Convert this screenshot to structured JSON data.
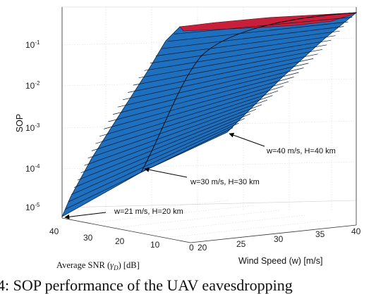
{
  "chart_data": {
    "type": "surface",
    "title": "",
    "xlabel": "Average SNR ($\\bar{\\gamma}_D$) [dB]",
    "xlabel_parts": {
      "pre": "Average SNR (",
      "sym": "γ",
      "sub": "D",
      "post": ") [dB]"
    },
    "ylabel": "Wind Speed (w) [m/s]",
    "zlabel": "SOP",
    "x_ticks": [
      "40",
      "30",
      "20",
      "10",
      "0"
    ],
    "y_ticks": [
      "20",
      "25",
      "30",
      "35",
      "40"
    ],
    "z_ticks": [
      {
        "base": "10",
        "exp": "-5"
      },
      {
        "base": "10",
        "exp": "-4"
      },
      {
        "base": "10",
        "exp": "-3"
      },
      {
        "base": "10",
        "exp": "-2"
      },
      {
        "base": "10",
        "exp": "-1"
      }
    ],
    "xlim": [
      0,
      40
    ],
    "ylim": [
      20,
      40
    ],
    "zlim_log10": [
      -5.3,
      -0.3
    ],
    "zscale": "log",
    "grid": true,
    "colors": {
      "surface": "#1f6fbf",
      "surface_high": "#c8203a",
      "edge": "#000000"
    },
    "surface_samples": [
      {
        "snr_db": 40,
        "w": 21,
        "log10_sop": -5.2
      },
      {
        "snr_db": 40,
        "w": 40,
        "log10_sop": -2.9
      },
      {
        "snr_db": 0,
        "w": 21,
        "log10_sop": -0.65
      },
      {
        "snr_db": 0,
        "w": 40,
        "log10_sop": -0.45
      }
    ],
    "annotations": [
      {
        "text": "w=40 m/s, H=40 km"
      },
      {
        "text": "w=30 m/s, H=30 km"
      },
      {
        "text": "w=21 m/s, H=20 km"
      }
    ]
  },
  "caption": "4: SOP performance of the UAV eavesdropping"
}
